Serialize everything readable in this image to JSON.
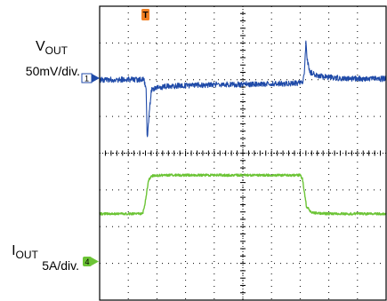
{
  "chart_data": {
    "type": "line",
    "grid": true,
    "xlim": [
      0,
      10
    ],
    "divisions": {
      "x": 10,
      "y": 8
    },
    "trigger_marker": {
      "label": "T",
      "x": 1.6,
      "color": "#f07f22"
    },
    "channels": [
      {
        "id": "ch1",
        "marker": "1",
        "color": "#1f4aa8",
        "label_main": "V",
        "label_sub": "OUT",
        "scale": "50mV/div.",
        "baseline_div": 6.0,
        "points": [
          [
            0.0,
            6.0
          ],
          [
            1.55,
            6.0
          ],
          [
            1.62,
            5.75
          ],
          [
            1.66,
            4.4
          ],
          [
            1.72,
            5.0
          ],
          [
            1.8,
            5.7
          ],
          [
            1.95,
            5.78
          ],
          [
            2.4,
            5.82
          ],
          [
            3.6,
            5.86
          ],
          [
            5.4,
            5.88
          ],
          [
            6.9,
            5.9
          ],
          [
            7.1,
            5.9
          ],
          [
            7.16,
            6.35
          ],
          [
            7.2,
            7.05
          ],
          [
            7.25,
            6.5
          ],
          [
            7.35,
            6.2
          ],
          [
            7.6,
            6.1
          ],
          [
            8.4,
            6.04
          ],
          [
            10.0,
            6.02
          ]
        ]
      },
      {
        "id": "ch4",
        "marker": "4",
        "color": "#6cc436",
        "label_main": "I",
        "label_sub": "OUT",
        "scale": "5A/div.",
        "baseline_div": 1.35,
        "points": [
          [
            0.0,
            2.35
          ],
          [
            1.5,
            2.35
          ],
          [
            1.58,
            2.6
          ],
          [
            1.7,
            3.25
          ],
          [
            1.8,
            3.38
          ],
          [
            2.2,
            3.4
          ],
          [
            7.0,
            3.4
          ],
          [
            7.08,
            3.3
          ],
          [
            7.22,
            2.55
          ],
          [
            7.4,
            2.38
          ],
          [
            8.0,
            2.35
          ],
          [
            10.0,
            2.35
          ]
        ]
      }
    ]
  }
}
